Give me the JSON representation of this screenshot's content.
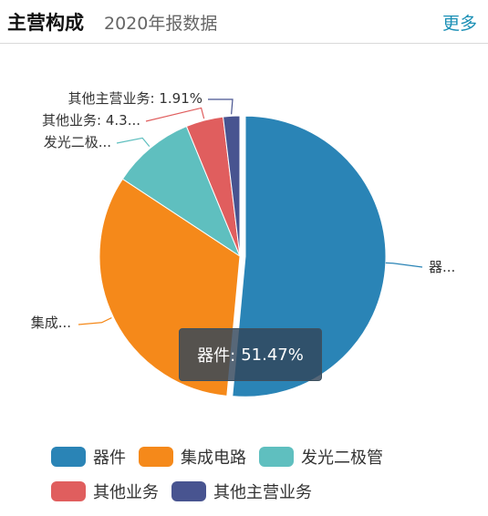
{
  "header": {
    "title": "主营构成",
    "subtitle": "2020年报数据",
    "more_label": "更多"
  },
  "chart_data": {
    "type": "pie",
    "slices": [
      {
        "name": "器件",
        "value": 51.47,
        "color": "#2a84b6"
      },
      {
        "name": "集成电路",
        "value": 32.8,
        "color": "#f5891a"
      },
      {
        "name": "发光二极管",
        "value": 9.52,
        "color": "#5fbfbf"
      },
      {
        "name": "其他业务",
        "value": 4.3,
        "color": "#e05e5e"
      },
      {
        "name": "其他主营业务",
        "value": 1.91,
        "color": "#485490"
      }
    ],
    "outer_labels": [
      "器...",
      "集成...",
      "发光二极...",
      "其他业务: 4.3...",
      "其他主营业务: 1.91%"
    ],
    "legend_position": "bottom"
  },
  "tooltip": {
    "name": "器件:",
    "value": "51.47%"
  }
}
